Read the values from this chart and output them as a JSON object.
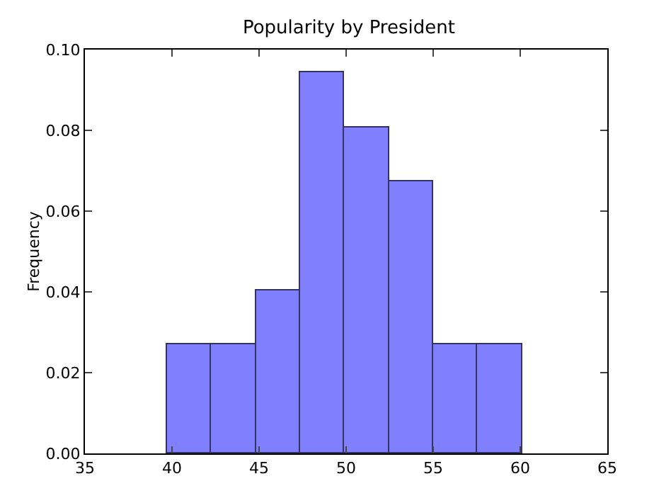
{
  "chart_data": {
    "type": "histogram",
    "title": "Popularity by President",
    "ylabel": "Frequency",
    "bins": [
      39.7,
      42.25,
      44.8,
      47.35,
      49.9,
      52.45,
      55.0,
      57.55,
      60.1
    ],
    "values": [
      0.027,
      0.027,
      0.0404,
      0.0944,
      0.0807,
      0.0674,
      0.027,
      0.027
    ],
    "color": "#8080ff",
    "xlim": [
      35,
      65
    ],
    "xticks": [
      35,
      40,
      45,
      50,
      55,
      60,
      65
    ],
    "ylim": [
      0,
      0.1
    ],
    "yticks": [
      {
        "value": 0,
        "label": "0.00"
      },
      {
        "value": 0.02,
        "label": "0.02"
      },
      {
        "value": 0.04,
        "label": "0.04"
      },
      {
        "value": 0.06,
        "label": "0.06"
      },
      {
        "value": 0.08,
        "label": "0.08"
      },
      {
        "value": 0.1,
        "label": "0.10"
      }
    ],
    "grid": false,
    "legend": false
  }
}
